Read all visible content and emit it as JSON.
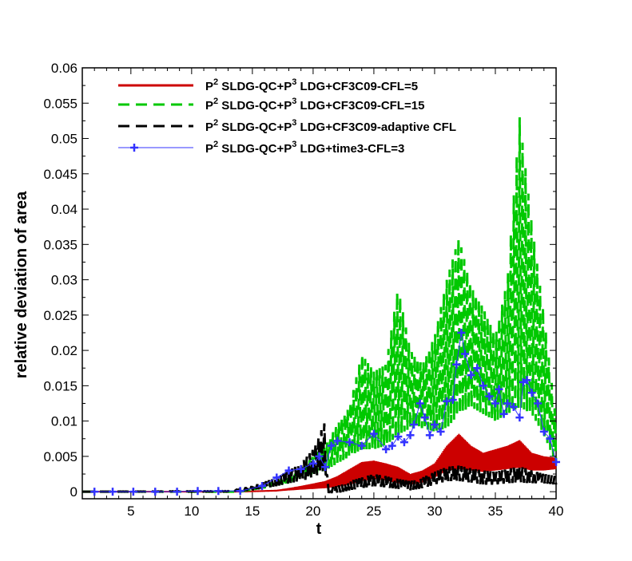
{
  "chart_data": {
    "type": "line",
    "title": "",
    "xlabel": "t",
    "ylabel": "relative deviation of area",
    "xlim": [
      1,
      40
    ],
    "ylim": [
      -0.001,
      0.06
    ],
    "xticks": [
      5,
      10,
      15,
      20,
      25,
      30,
      35,
      40
    ],
    "yticks": [
      0,
      0.005,
      0.01,
      0.015,
      0.02,
      0.025,
      0.03,
      0.035,
      0.04,
      0.045,
      0.05,
      0.055,
      0.06
    ],
    "ytick_labels": [
      "0",
      "0.005",
      "0.01",
      "0.015",
      "0.02",
      "0.025",
      "0.03",
      "0.035",
      "0.04",
      "0.045",
      "0.05",
      "0.055",
      "0.06"
    ],
    "xtick_labels": [
      "5",
      "10",
      "15",
      "20",
      "25",
      "30",
      "35",
      "40"
    ],
    "legend_position": "top-left",
    "grid": false,
    "series": [
      {
        "name": "P² SLDG-QC+P³ LDG+CF3C09-CFL=5",
        "prefix": "P",
        "sup1": "2",
        "mid": " SLDG-QC+P",
        "sup2": "3",
        "suffix": " LDG+CF3C09-CFL=5",
        "color": "#cc0000",
        "style": "solid",
        "band": true,
        "x": [
          1,
          14,
          17,
          19,
          21,
          22,
          23,
          24,
          25,
          26,
          27,
          28,
          29,
          30,
          31,
          32,
          33,
          34,
          35,
          36,
          37,
          38,
          39,
          40
        ],
        "lo": [
          0,
          0,
          0.0001,
          0.0003,
          0.0005,
          0.0007,
          0.001,
          0.0015,
          0.0018,
          0.0016,
          0.0012,
          0.001,
          0.0013,
          0.002,
          0.003,
          0.0032,
          0.003,
          0.0028,
          0.003,
          0.0032,
          0.0034,
          0.003,
          0.003,
          0.0032
        ],
        "hi": [
          0,
          0,
          0.0002,
          0.0008,
          0.0015,
          0.0022,
          0.0032,
          0.0042,
          0.0044,
          0.004,
          0.0035,
          0.0025,
          0.003,
          0.004,
          0.0065,
          0.0082,
          0.0065,
          0.0055,
          0.006,
          0.0065,
          0.0073,
          0.0055,
          0.005,
          0.0048
        ]
      },
      {
        "name": "P² SLDG-QC+P³ LDG+CF3C09-CFL=15",
        "prefix": "P",
        "sup1": "2",
        "mid": " SLDG-QC+P",
        "sup2": "3",
        "suffix": " LDG+CF3C09-CFL=15",
        "color": "#00c800",
        "style": "dashed",
        "band": true,
        "x": [
          1,
          14,
          16,
          18,
          19,
          20,
          21,
          22,
          23,
          24,
          25,
          26,
          27,
          28,
          29,
          30,
          31,
          32,
          33,
          34,
          35,
          36,
          37,
          38,
          39,
          40
        ],
        "lo": [
          0,
          0,
          0.0005,
          0.0012,
          0.0018,
          0.0025,
          0.003,
          0.004,
          0.005,
          0.006,
          0.006,
          0.0065,
          0.008,
          0.009,
          0.009,
          0.0085,
          0.009,
          0.011,
          0.012,
          0.011,
          0.01,
          0.011,
          0.012,
          0.011,
          0.008,
          0.004
        ],
        "hi": [
          0,
          0,
          0.001,
          0.002,
          0.003,
          0.005,
          0.0065,
          0.0095,
          0.012,
          0.0195,
          0.017,
          0.018,
          0.029,
          0.02,
          0.018,
          0.022,
          0.03,
          0.036,
          0.029,
          0.026,
          0.022,
          0.03,
          0.053,
          0.038,
          0.025,
          0.01
        ]
      },
      {
        "name": "P² SLDG-QC+P³ LDG+CF3C09-adaptive CFL",
        "prefix": "P",
        "sup1": "2",
        "mid": " SLDG-QC+P",
        "sup2": "3",
        "suffix": " LDG+CF3C09-adaptive CFL",
        "color": "#000000",
        "style": "dashed",
        "band": true,
        "x": [
          1,
          13,
          15,
          17,
          18,
          19,
          20,
          21,
          21.2,
          22,
          23,
          24,
          25,
          26,
          27,
          28,
          29,
          30,
          31,
          32,
          33,
          34,
          35,
          36,
          37,
          38,
          39,
          40
        ],
        "lo": [
          0,
          0,
          0.0002,
          0.0008,
          0.0012,
          0.0015,
          0.002,
          0.003,
          -0.0002,
          -0.0002,
          0.0002,
          0.0005,
          0.0008,
          0.0006,
          0.0004,
          0.0002,
          0.0005,
          0.001,
          0.0015,
          0.0015,
          0.0013,
          0.001,
          0.001,
          0.0012,
          0.0013,
          0.0012,
          0.0012,
          0.001
        ],
        "hi": [
          0,
          0.0001,
          0.0008,
          0.002,
          0.003,
          0.004,
          0.006,
          0.01,
          0.0005,
          0.0008,
          0.0015,
          0.002,
          0.0025,
          0.0022,
          0.0018,
          0.0015,
          0.002,
          0.0028,
          0.0035,
          0.0037,
          0.0033,
          0.003,
          0.0028,
          0.0032,
          0.0036,
          0.003,
          0.0025,
          0.0022
        ]
      },
      {
        "name": "P² SLDG-QC+P³ LDG+time3-CFL=3",
        "prefix": "P",
        "sup1": "2",
        "mid": " SLDG-QC+P",
        "sup2": "3",
        "suffix": " LDG+time3-CFL=3",
        "color": "#3333ff",
        "style": "solid-marker",
        "band": false,
        "x": [
          2,
          3.5,
          5.2,
          7,
          8.8,
          10.5,
          12.2,
          14,
          15.8,
          17,
          18,
          19,
          20,
          20.5,
          21,
          21.5,
          22,
          23,
          24,
          25,
          26,
          26.5,
          27,
          27.5,
          28,
          28.3,
          28.8,
          29.2,
          29.6,
          30,
          30.5,
          31,
          31.5,
          31.8,
          32.2,
          32.5,
          33,
          33.5,
          34,
          34.5,
          35,
          35.3,
          35.7,
          36,
          36.5,
          37,
          37.3,
          37.6,
          38,
          38.5,
          39,
          39.5,
          40
        ],
        "y": [
          0,
          0,
          0,
          0,
          0,
          0.0001,
          0.0001,
          0.0001,
          0.0008,
          0.002,
          0.003,
          0.0032,
          0.004,
          0.005,
          0.0035,
          0.0065,
          0.0072,
          0.007,
          0.0065,
          0.0082,
          0.006,
          0.0065,
          0.0078,
          0.007,
          0.008,
          0.0095,
          0.0125,
          0.0105,
          0.008,
          0.0095,
          0.0085,
          0.0128,
          0.013,
          0.018,
          0.0225,
          0.0195,
          0.0165,
          0.0175,
          0.015,
          0.0135,
          0.0125,
          0.0145,
          0.011,
          0.0125,
          0.012,
          0.0105,
          0.0155,
          0.0158,
          0.014,
          0.0125,
          0.0085,
          0.0075,
          0.0042
        ]
      }
    ]
  }
}
